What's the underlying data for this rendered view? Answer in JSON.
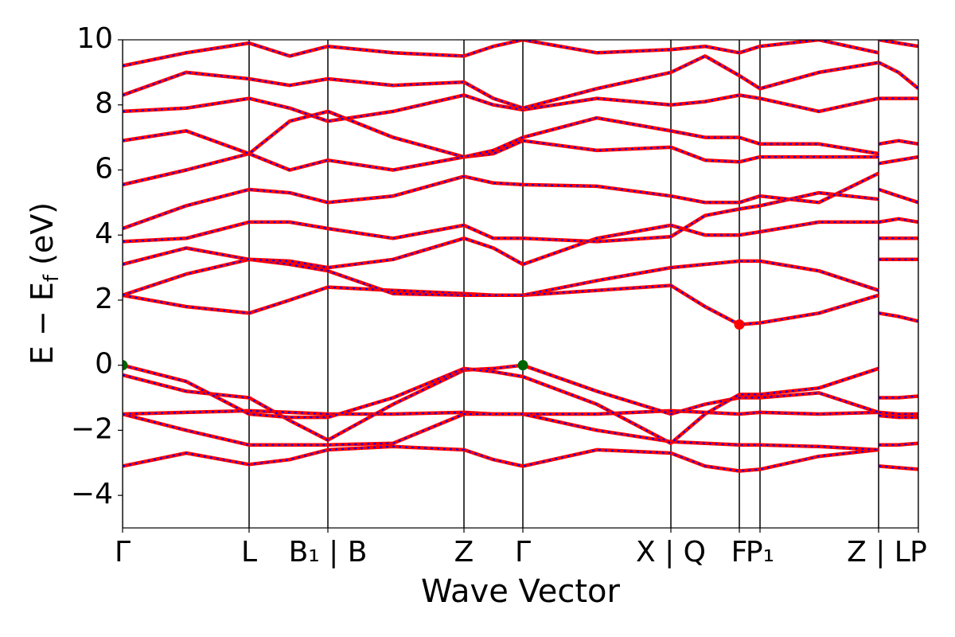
{
  "chart_data": {
    "type": "line",
    "xlabel": "Wave Vector",
    "ylabel": {
      "main": "E − E",
      "subscript": "f",
      "unit": " (eV)"
    },
    "xlim": [
      0,
      1
    ],
    "ylim": [
      -5,
      10
    ],
    "xticks": [
      {
        "value": 0,
        "label": "Γ"
      },
      {
        "value": 0.159,
        "label": "L"
      },
      {
        "value": 0.258,
        "label": "B₁ | B"
      },
      {
        "value": 0.429,
        "label": "Z"
      },
      {
        "value": 0.503,
        "label": "Γ"
      },
      {
        "value": 0.689,
        "label": "X | Q"
      },
      {
        "value": 0.775,
        "label": "F"
      },
      {
        "value": 0.801,
        "label": "P₁"
      },
      {
        "value": 0.95,
        "label": "Z | L"
      },
      {
        "value": 1.0,
        "label": "P"
      }
    ],
    "yticks": [
      {
        "value": -4,
        "label": "−4"
      },
      {
        "value": -2,
        "label": "−2"
      },
      0,
      2,
      4,
      6,
      8,
      10
    ],
    "dash_color": "#0000ff",
    "x": [
      0,
      0.08,
      0.159,
      0.21,
      0.258,
      0.34,
      0.429,
      0.466,
      0.503,
      0.596,
      0.689,
      0.732,
      0.775,
      0.801,
      0.875,
      0.95,
      0.9502,
      0.9504,
      0.975,
      1.0
    ],
    "series": [
      {
        "color": "#ff0000",
        "values": [
          -3.1,
          -2.7,
          -3.05,
          -2.9,
          -2.6,
          -2.5,
          -2.6,
          -2.9,
          -3.1,
          -2.6,
          -2.7,
          -3.1,
          -3.25,
          -3.2,
          -2.8,
          -2.6,
          null,
          -3.1,
          -3.15,
          -3.2
        ]
      },
      {
        "color": "#ff0000",
        "values": [
          -1.5,
          -1.45,
          -1.4,
          -1.45,
          -1.5,
          -1.5,
          -1.45,
          -1.5,
          -1.5,
          -1.5,
          -1.4,
          -1.45,
          -1.5,
          -1.45,
          -1.5,
          -1.45,
          null,
          -1.55,
          -1.6,
          -1.6
        ]
      },
      {
        "color": "#ff0000",
        "values": [
          -1.5,
          -2.0,
          -2.45,
          -2.45,
          -2.45,
          -2.4,
          -1.5,
          -1.5,
          -1.5,
          -2.0,
          -2.35,
          -2.4,
          -2.45,
          -2.45,
          -2.5,
          -2.6,
          null,
          -2.45,
          -2.45,
          -2.4
        ]
      },
      {
        "color": "#ff0000",
        "values": [
          -0.3,
          -0.8,
          -1.0,
          -1.7,
          -2.3,
          -1.2,
          -0.15,
          -0.1,
          0,
          -0.8,
          -1.5,
          -1.2,
          -1.0,
          -1.0,
          -0.85,
          -1.45,
          null,
          -1.0,
          -1.0,
          -0.95
        ]
      },
      {
        "color": "#ff0000",
        "values": [
          0,
          -0.5,
          -1.5,
          -1.6,
          -1.6,
          -1.0,
          -0.1,
          -0.2,
          -0.35,
          -1.2,
          -2.4,
          -1.5,
          -0.9,
          -0.9,
          -0.7,
          -0.1,
          null,
          -1.45,
          -1.5,
          -1.5
        ]
      },
      {
        "color": "#ff0000",
        "values": [
          2.15,
          1.8,
          1.6,
          2.0,
          2.4,
          2.3,
          2.2,
          2.15,
          2.15,
          2.3,
          2.45,
          1.8,
          1.25,
          1.3,
          1.6,
          2.15,
          null,
          1.6,
          1.5,
          1.35
        ]
      },
      {
        "color": "#ff0000",
        "values": [
          2.15,
          2.8,
          3.25,
          3.1,
          2.9,
          2.2,
          2.15,
          2.15,
          2.15,
          2.6,
          3.0,
          3.1,
          3.2,
          3.2,
          2.9,
          2.3,
          null,
          3.25,
          3.25,
          3.25
        ]
      },
      {
        "color": "#ff0000",
        "values": [
          3.1,
          3.6,
          3.25,
          3.2,
          3.0,
          3.25,
          3.9,
          3.6,
          3.1,
          3.9,
          4.3,
          4.0,
          4.0,
          4.1,
          4.4,
          4.4,
          null,
          3.9,
          3.9,
          3.9
        ]
      },
      {
        "color": "#ff0000",
        "values": [
          3.8,
          3.9,
          4.4,
          4.4,
          4.2,
          3.9,
          4.3,
          3.9,
          3.9,
          3.8,
          3.95,
          4.6,
          4.8,
          4.9,
          5.3,
          5.1,
          null,
          4.4,
          4.5,
          4.4
        ]
      },
      {
        "color": "#ff0000",
        "values": [
          4.2,
          4.9,
          5.4,
          5.3,
          5.0,
          5.2,
          5.8,
          5.6,
          5.55,
          5.5,
          5.2,
          5.0,
          5.0,
          5.2,
          5.0,
          5.9,
          null,
          5.4,
          5.2,
          5.0
        ]
      },
      {
        "color": "#ff0000",
        "values": [
          5.55,
          6.0,
          6.5,
          6.0,
          6.3,
          6.0,
          6.4,
          6.5,
          6.9,
          6.6,
          6.7,
          6.3,
          6.25,
          6.4,
          6.4,
          6.4,
          null,
          6.2,
          6.3,
          6.4
        ]
      },
      {
        "color": "#ff0000",
        "values": [
          6.9,
          7.2,
          6.5,
          7.5,
          7.8,
          7.0,
          6.4,
          6.6,
          7.0,
          7.6,
          7.2,
          7.0,
          7.0,
          6.8,
          6.8,
          6.5,
          null,
          6.8,
          6.9,
          6.8
        ]
      },
      {
        "color": "#ff0000",
        "values": [
          7.8,
          7.9,
          8.2,
          7.9,
          7.5,
          7.8,
          8.3,
          8.0,
          7.85,
          8.2,
          8.0,
          8.1,
          8.3,
          8.2,
          7.8,
          8.2,
          null,
          8.2,
          8.2,
          8.2
        ]
      },
      {
        "color": "#ff0000",
        "values": [
          8.3,
          9.0,
          8.8,
          8.6,
          8.8,
          8.6,
          8.7,
          8.2,
          7.9,
          8.5,
          9.0,
          9.5,
          8.9,
          8.5,
          9.0,
          9.3,
          null,
          9.3,
          9.0,
          8.5
        ]
      },
      {
        "color": "#ff0000",
        "values": [
          9.2,
          9.6,
          9.9,
          9.5,
          9.8,
          9.6,
          9.5,
          9.8,
          10,
          9.6,
          9.7,
          9.8,
          9.6,
          9.8,
          10,
          9.6,
          null,
          10,
          9.9,
          9.8
        ]
      }
    ],
    "markers": [
      {
        "x": 0,
        "y": 0,
        "color": "#006400"
      },
      {
        "x": 0.503,
        "y": 0,
        "color": "#006400"
      },
      {
        "x": 0.775,
        "y": 1.25,
        "color": "#ff0000"
      }
    ]
  }
}
